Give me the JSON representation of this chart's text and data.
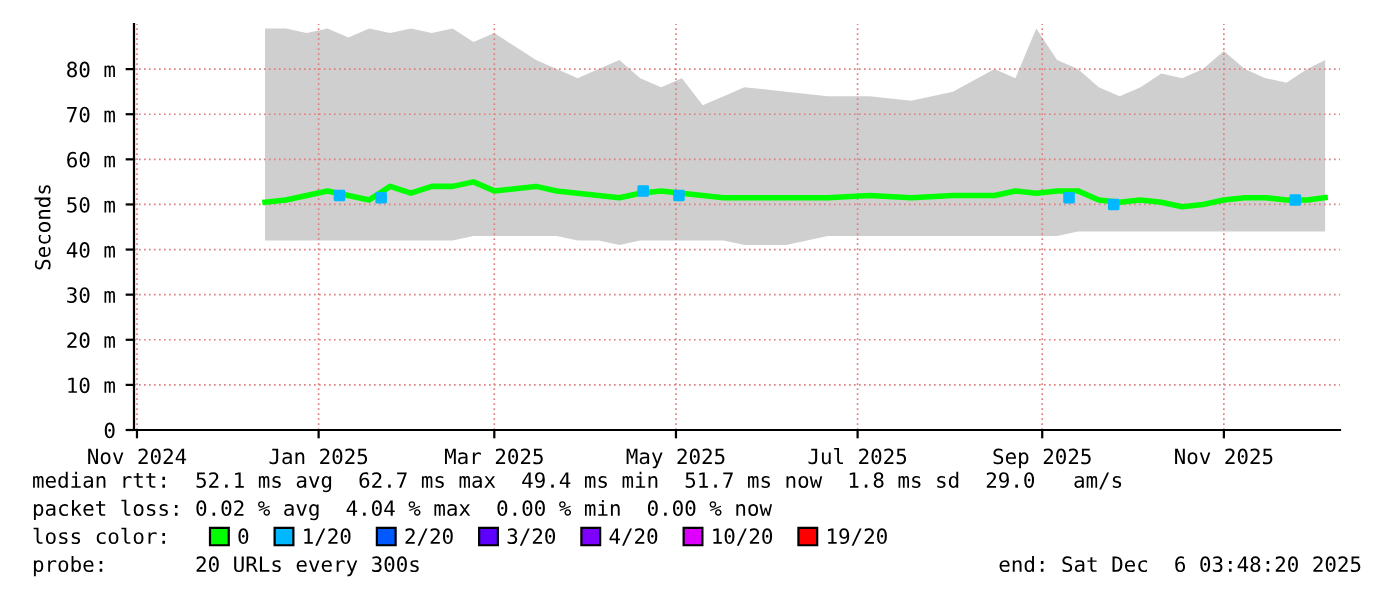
{
  "chart_data": {
    "type": "line",
    "ylabel": "Seconds",
    "legend_title": "loss color:",
    "legend": "bottom",
    "grid": true,
    "x": [
      "2024-12-14",
      "2024-12-21",
      "2024-12-28",
      "2025-01-04",
      "2025-01-11",
      "2025-01-18",
      "2025-01-25",
      "2025-02-01",
      "2025-02-08",
      "2025-02-15",
      "2025-02-22",
      "2025-03-01",
      "2025-03-08",
      "2025-03-15",
      "2025-03-22",
      "2025-03-29",
      "2025-04-05",
      "2025-04-12",
      "2025-04-19",
      "2025-04-26",
      "2025-05-03",
      "2025-05-10",
      "2025-05-17",
      "2025-05-24",
      "2025-06-07",
      "2025-06-21",
      "2025-07-05",
      "2025-07-19",
      "2025-08-02",
      "2025-08-16",
      "2025-08-23",
      "2025-08-30",
      "2025-09-06",
      "2025-09-13",
      "2025-09-20",
      "2025-09-27",
      "2025-10-04",
      "2025-10-11",
      "2025-10-18",
      "2025-10-25",
      "2025-11-01",
      "2025-11-08",
      "2025-11-15",
      "2025-11-22",
      "2025-11-29",
      "2025-12-05"
    ],
    "series": [
      {
        "name": "0",
        "color": "#00ff00",
        "values": [
          50.5,
          51,
          52,
          53,
          52,
          51,
          54,
          52.5,
          54,
          54,
          55,
          53,
          53.5,
          54,
          53,
          52.5,
          52,
          51.5,
          52.5,
          53,
          52.5,
          52,
          51.5,
          51.5,
          51.5,
          51.5,
          52,
          51.5,
          52,
          52,
          53,
          52.5,
          53,
          53,
          51,
          50.5,
          51,
          50.5,
          49.5,
          50,
          51,
          51.5,
          51.5,
          51,
          51,
          51.5
        ],
        "lower": [
          42,
          42,
          42,
          42,
          42,
          42,
          42,
          42,
          42,
          42,
          43,
          43,
          43,
          43,
          43,
          42,
          42,
          41,
          42,
          42,
          42,
          42,
          42,
          41,
          41,
          43,
          43,
          43,
          43,
          43,
          43,
          43,
          43,
          44,
          44,
          44,
          44,
          44,
          44,
          44,
          44,
          44,
          44,
          44,
          44,
          44
        ],
        "upper": [
          89,
          89,
          88,
          89,
          87,
          89,
          88,
          89,
          88,
          89,
          86,
          88,
          85,
          82,
          80,
          78,
          80,
          82,
          78,
          76,
          78,
          72,
          74,
          76,
          75,
          74,
          74,
          73,
          75,
          80,
          78,
          89,
          82,
          80,
          76,
          74,
          76,
          79,
          78,
          80,
          84,
          80,
          78,
          77,
          80,
          82
        ]
      },
      {
        "name": "1/20",
        "type": "scatter",
        "color": "#00b8ff",
        "x": [
          "2025-01-08",
          "2025-01-22",
          "2025-04-20",
          "2025-05-02",
          "2025-09-10",
          "2025-09-25",
          "2025-11-25"
        ],
        "values": [
          52,
          51.5,
          53,
          52,
          51.5,
          50,
          51
        ]
      },
      {
        "name": "2/20",
        "type": "scatter",
        "color": "#0059ff",
        "values": [
          null,
          null,
          null,
          null,
          null,
          null,
          null,
          null,
          null,
          null,
          null,
          null,
          null,
          null,
          null,
          null,
          null,
          null,
          null,
          null,
          null,
          null,
          null,
          null,
          null,
          null,
          null,
          null,
          null,
          null,
          null,
          null,
          null,
          null,
          null,
          null,
          null,
          null,
          null,
          null,
          null,
          null,
          null,
          null,
          null,
          null
        ]
      },
      {
        "name": "3/20",
        "type": "scatter",
        "color": "#5e00ff",
        "values": [
          null,
          null,
          null,
          null,
          null,
          null,
          null,
          null,
          null,
          null,
          null,
          null,
          null,
          null,
          null,
          null,
          null,
          null,
          null,
          null,
          null,
          null,
          null,
          null,
          null,
          null,
          null,
          null,
          null,
          null,
          null,
          null,
          null,
          null,
          null,
          null,
          null,
          null,
          null,
          null,
          null,
          null,
          null,
          null,
          null,
          null
        ]
      },
      {
        "name": "4/20",
        "type": "scatter",
        "color": "#7e00ff",
        "values": [
          null,
          null,
          null,
          null,
          null,
          null,
          null,
          null,
          null,
          null,
          null,
          null,
          null,
          null,
          null,
          null,
          null,
          null,
          null,
          null,
          null,
          null,
          null,
          null,
          null,
          null,
          null,
          null,
          null,
          null,
          null,
          null,
          null,
          null,
          null,
          null,
          null,
          null,
          null,
          null,
          null,
          null,
          null,
          null,
          null,
          null
        ]
      },
      {
        "name": "10/20",
        "type": "scatter",
        "color": "#dd00ff",
        "values": [
          null,
          null,
          null,
          null,
          null,
          null,
          null,
          null,
          null,
          null,
          null,
          null,
          null,
          null,
          null,
          null,
          null,
          null,
          null,
          null,
          null,
          null,
          null,
          null,
          null,
          null,
          null,
          null,
          null,
          null,
          null,
          null,
          null,
          null,
          null,
          null,
          null,
          null,
          null,
          null,
          null,
          null,
          null,
          null,
          null,
          null
        ]
      },
      {
        "name": "19/20",
        "type": "scatter",
        "color": "#ff0000",
        "values": [
          null,
          null,
          null,
          null,
          null,
          null,
          null,
          null,
          null,
          null,
          null,
          null,
          null,
          null,
          null,
          null,
          null,
          null,
          null,
          null,
          null,
          null,
          null,
          null,
          null,
          null,
          null,
          null,
          null,
          null,
          null,
          null,
          null,
          null,
          null,
          null,
          null,
          null,
          null,
          null,
          null,
          null,
          null,
          null,
          null,
          null
        ]
      }
    ],
    "xlim": [
      "2024-10-31",
      "2025-12-10"
    ],
    "xticks": [
      {
        "value": "2024-11-01",
        "label": "Nov 2024"
      },
      {
        "value": "2025-01-01",
        "label": "Jan 2025"
      },
      {
        "value": "2025-03-01",
        "label": "Mar 2025"
      },
      {
        "value": "2025-05-01",
        "label": "May 2025"
      },
      {
        "value": "2025-07-01",
        "label": "Jul 2025"
      },
      {
        "value": "2025-09-01",
        "label": "Sep 2025"
      },
      {
        "value": "2025-11-01",
        "label": "Nov 2025"
      }
    ],
    "ylim": [
      0,
      90
    ],
    "yticks": [
      0,
      {
        "value": 10,
        "label": "10 m"
      },
      {
        "value": 20,
        "label": "20 m"
      },
      {
        "value": 30,
        "label": "30 m"
      },
      {
        "value": 40,
        "label": "40 m"
      },
      {
        "value": 50,
        "label": "50 m"
      },
      {
        "value": 60,
        "label": "60 m"
      },
      {
        "value": 70,
        "label": "70 m"
      },
      {
        "value": 80,
        "label": "80 m"
      }
    ],
    "annotations": [
      "median rtt:  52.1 ms avg  62.7 ms max  49.4 ms min  51.7 ms now  1.8 ms sd  29.0   am/s",
      "packet loss: 0.02 % avg  4.04 % max  0.00 % min  0.00 % now",
      "probe:       20 URLs every 300s",
      "end: Sat Dec  6 03:48:20 2025"
    ]
  }
}
